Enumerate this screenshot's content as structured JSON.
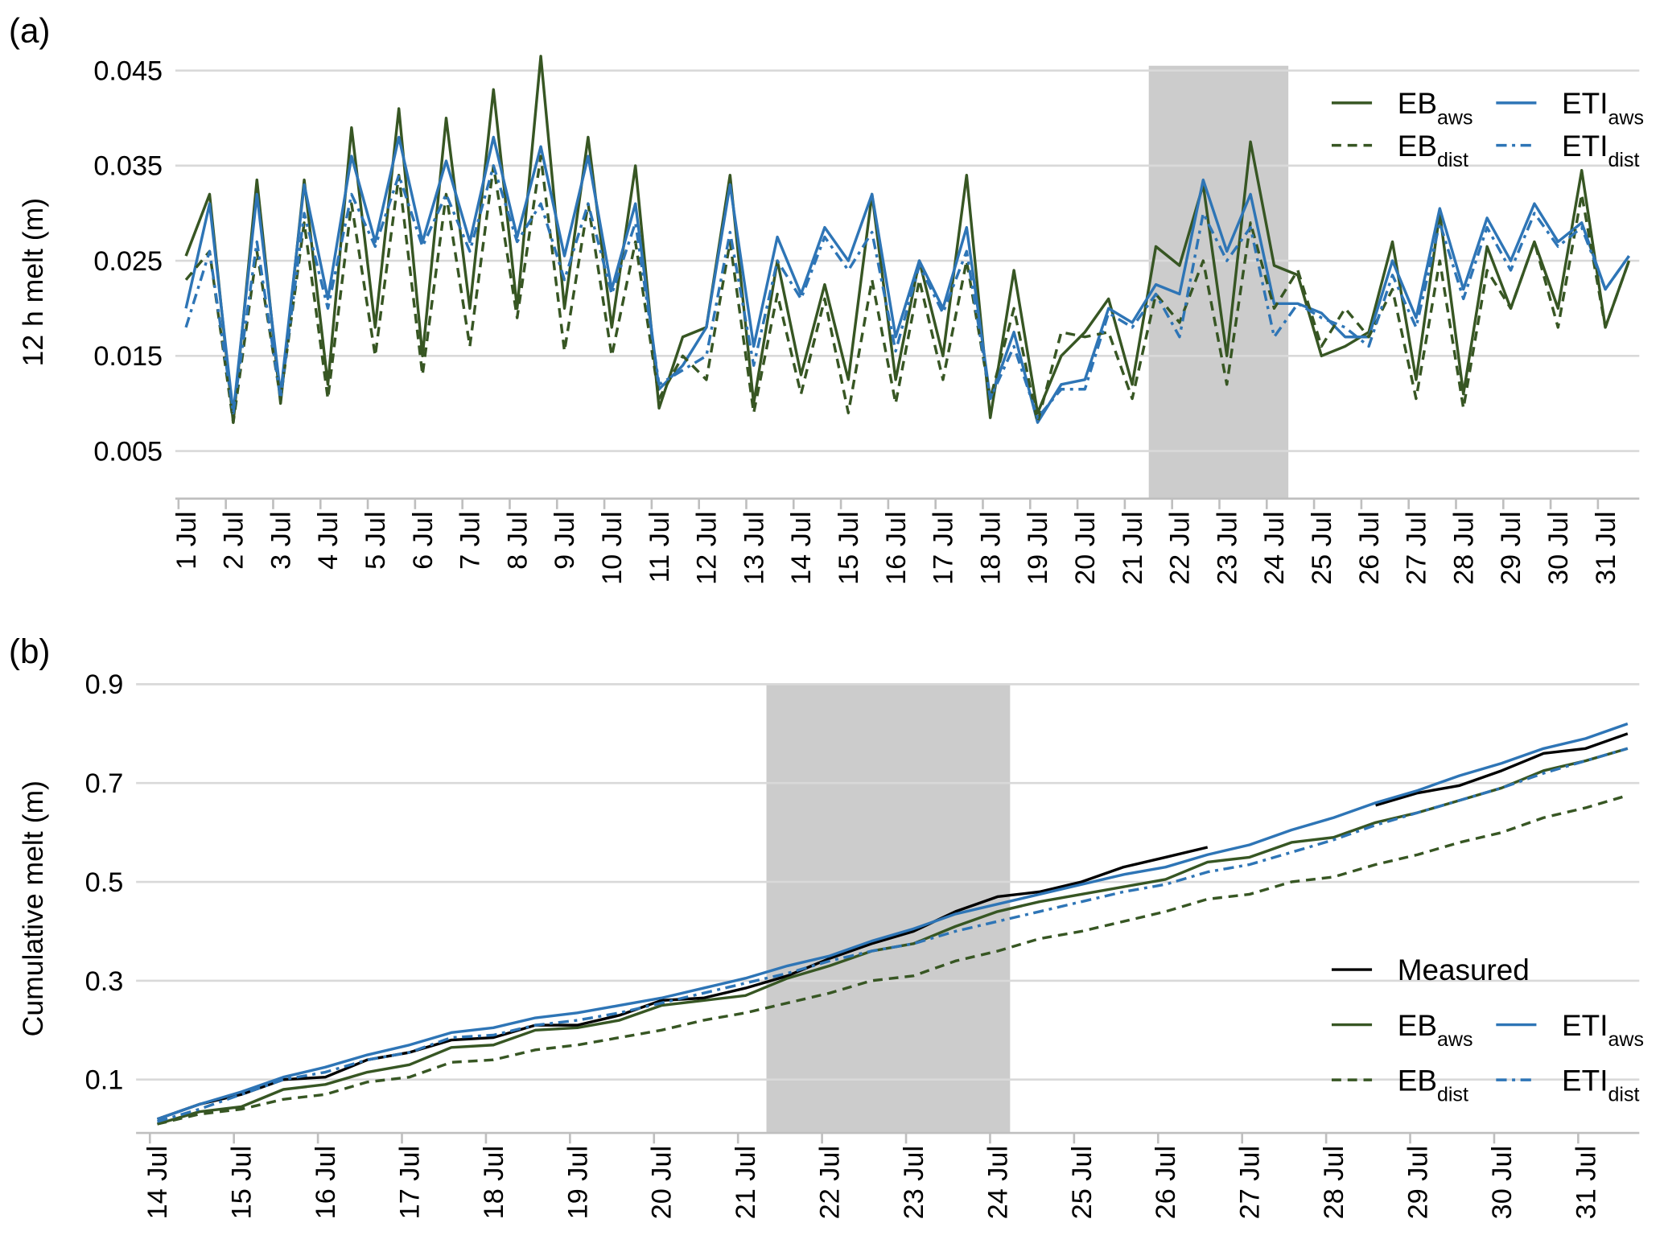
{
  "chart_data": [
    {
      "type": "line",
      "label": "(a)",
      "y_label": "12 h  melt (m)",
      "categories": [
        "1 Jul",
        null,
        "2 Jul",
        null,
        "3 Jul",
        null,
        "4 Jul",
        null,
        "5 Jul",
        null,
        "6 Jul",
        null,
        "7 Jul",
        null,
        "8 Jul",
        null,
        "9 Jul",
        null,
        "10 Jul",
        null,
        "11 Jul",
        null,
        "12 Jul",
        null,
        "13 Jul",
        null,
        "14 Jul",
        null,
        "15 Jul",
        null,
        "16 Jul",
        null,
        "17 Jul",
        null,
        "18 Jul",
        null,
        "19 Jul",
        null,
        "20 Jul",
        null,
        "21 Jul",
        null,
        "22 Jul",
        null,
        "23 Jul",
        null,
        "24 Jul",
        null,
        "25 Jul",
        null,
        "26 Jul",
        null,
        "27 Jul",
        null,
        "28 Jul",
        null,
        "29 Jul",
        null,
        "30 Jul",
        null,
        "31 Jul",
        null
      ],
      "ylim": [
        0,
        0.0455
      ],
      "yticks": [
        0.005,
        0.015,
        0.025,
        0.035,
        0.045
      ],
      "grid": true,
      "highlight_range": [
        40.7,
        46.6
      ],
      "highlight_color": "#cccccc",
      "legend_position": "upper right",
      "series": [
        {
          "name": "EB",
          "subscript": "aws",
          "color": "#375623",
          "dash": "solid",
          "values": [
            0.0255,
            0.032,
            0.008,
            0.0335,
            0.01,
            0.0335,
            0.012,
            0.039,
            0.018,
            0.041,
            0.015,
            0.04,
            0.02,
            0.043,
            0.02,
            0.0465,
            0.02,
            0.038,
            0.018,
            0.035,
            0.0095,
            0.017,
            0.018,
            0.034,
            0.01,
            0.025,
            0.013,
            0.0225,
            0.0125,
            0.032,
            0.0125,
            0.025,
            0.015,
            0.034,
            0.0085,
            0.024,
            0.009,
            0.015,
            0.0175,
            0.021,
            0.012,
            0.0265,
            0.0245,
            0.033,
            0.015,
            0.0375,
            0.0245,
            0.0235,
            0.015,
            0.016,
            0.0175,
            0.027,
            0.0125,
            0.03,
            0.011,
            0.0265,
            0.02,
            0.027,
            0.02,
            0.0345,
            0.018,
            0.025
          ]
        },
        {
          "name": "ETI",
          "subscript": "aws",
          "color": "#2e75b6",
          "dash": "solid",
          "values": [
            0.02,
            0.031,
            0.009,
            0.032,
            0.011,
            0.033,
            0.021,
            0.036,
            0.027,
            0.038,
            0.027,
            0.0355,
            0.027,
            0.038,
            0.0275,
            0.037,
            0.0255,
            0.036,
            0.022,
            0.031,
            0.0115,
            0.014,
            0.018,
            0.033,
            0.016,
            0.0275,
            0.0215,
            0.0285,
            0.025,
            0.032,
            0.017,
            0.025,
            0.02,
            0.0285,
            0.0105,
            0.0175,
            0.008,
            0.012,
            0.0125,
            0.02,
            0.0185,
            0.0225,
            0.0215,
            0.0335,
            0.026,
            0.032,
            0.0205,
            0.0205,
            0.0195,
            0.017,
            0.017,
            0.025,
            0.019,
            0.0305,
            0.022,
            0.0295,
            0.025,
            0.031,
            0.027,
            0.029,
            0.022,
            0.0255
          ]
        },
        {
          "name": "EB",
          "subscript": "dist",
          "color": "#375623",
          "dash": "dashed",
          "values": [
            0.023,
            0.026,
            0.008,
            0.026,
            0.0105,
            0.029,
            0.0105,
            0.031,
            0.015,
            0.034,
            0.013,
            0.032,
            0.016,
            0.035,
            0.019,
            0.036,
            0.0155,
            0.031,
            0.015,
            0.027,
            0.0105,
            0.015,
            0.0125,
            0.027,
            0.009,
            0.0215,
            0.011,
            0.021,
            0.009,
            0.023,
            0.01,
            0.023,
            0.0125,
            0.025,
            0.0105,
            0.02,
            0.008,
            0.0175,
            0.017,
            0.0175,
            0.0105,
            0.0215,
            0.0185,
            0.025,
            0.012,
            0.029,
            0.02,
            0.024,
            0.016,
            0.02,
            0.017,
            0.022,
            0.0105,
            0.025,
            0.0095,
            0.024,
            0.02,
            0.027,
            0.018,
            0.032,
            0.018,
            0.025
          ]
        },
        {
          "name": "ETI",
          "subscript": "dist",
          "color": "#2e75b6",
          "dash": "dashdot",
          "values": [
            0.018,
            0.026,
            0.009,
            0.027,
            0.0105,
            0.03,
            0.02,
            0.032,
            0.0265,
            0.034,
            0.0265,
            0.032,
            0.026,
            0.035,
            0.027,
            0.031,
            0.023,
            0.031,
            0.0215,
            0.029,
            0.012,
            0.0135,
            0.015,
            0.028,
            0.014,
            0.025,
            0.021,
            0.0275,
            0.024,
            0.028,
            0.0155,
            0.0245,
            0.0195,
            0.026,
            0.0105,
            0.016,
            0.0085,
            0.0115,
            0.0115,
            0.0195,
            0.018,
            0.0215,
            0.017,
            0.03,
            0.025,
            0.0285,
            0.017,
            0.0205,
            0.019,
            0.018,
            0.016,
            0.0235,
            0.018,
            0.029,
            0.021,
            0.0285,
            0.024,
            0.03,
            0.0265,
            0.0285,
            0.022,
            0.0255
          ]
        }
      ]
    },
    {
      "type": "line",
      "label": "(b)",
      "y_label": "Cumulative melt (m)",
      "categories": [
        "14 Jul",
        null,
        "15 Jul",
        null,
        "16 Jul",
        null,
        "17 Jul",
        null,
        "18 Jul",
        null,
        "19 Jul",
        null,
        "20 Jul",
        null,
        "21 Jul",
        null,
        "22 Jul",
        null,
        "23 Jul",
        null,
        "24 Jul",
        null,
        "25 Jul",
        null,
        "26 Jul",
        null,
        "27 Jul",
        null,
        "28 Jul",
        null,
        "29 Jul",
        null,
        "30 Jul",
        null,
        "31 Jul",
        null
      ],
      "ylim": [
        -0.008,
        0.9
      ],
      "yticks": [
        0.1,
        0.3,
        0.5,
        0.7,
        0.9
      ],
      "grid": true,
      "highlight_range": [
        14.5,
        20.3
      ],
      "highlight_color": "#cccccc",
      "legend_position": "lower right",
      "series": [
        {
          "name": "Measured",
          "color": "#000000",
          "dash": "solid",
          "values": [
            0.02,
            0.05,
            0.07,
            0.1,
            0.105,
            0.14,
            0.155,
            0.18,
            0.185,
            0.21,
            0.21,
            0.23,
            0.26,
            0.265,
            0.285,
            0.31,
            0.345,
            0.375,
            0.4,
            0.44,
            0.47,
            0.48,
            0.5,
            0.53,
            0.55,
            0.57,
            null,
            null,
            null,
            0.655,
            0.68,
            0.695,
            0.725,
            0.76,
            0.77,
            0.8
          ]
        },
        {
          "name": "EB",
          "subscript": "aws",
          "color": "#375623",
          "dash": "solid",
          "values": [
            0.01,
            0.035,
            0.045,
            0.08,
            0.09,
            0.115,
            0.13,
            0.165,
            0.17,
            0.2,
            0.205,
            0.22,
            0.25,
            0.26,
            0.27,
            0.305,
            0.33,
            0.36,
            0.375,
            0.41,
            0.44,
            0.46,
            0.475,
            0.49,
            0.505,
            0.54,
            0.55,
            0.58,
            0.59,
            0.62,
            0.64,
            0.665,
            0.69,
            0.725,
            0.745,
            0.77
          ]
        },
        {
          "name": "ETI",
          "subscript": "aws",
          "color": "#2e75b6",
          "dash": "solid",
          "values": [
            0.02,
            0.05,
            0.075,
            0.105,
            0.125,
            0.15,
            0.17,
            0.195,
            0.205,
            0.225,
            0.235,
            0.25,
            0.265,
            0.285,
            0.305,
            0.33,
            0.35,
            0.38,
            0.405,
            0.435,
            0.455,
            0.475,
            0.495,
            0.515,
            0.53,
            0.555,
            0.575,
            0.605,
            0.63,
            0.66,
            0.685,
            0.715,
            0.74,
            0.77,
            0.79,
            0.82
          ]
        },
        {
          "name": "EB",
          "subscript": "dist",
          "color": "#375623",
          "dash": "dashed",
          "values": [
            0.01,
            0.03,
            0.04,
            0.06,
            0.07,
            0.095,
            0.105,
            0.135,
            0.14,
            0.16,
            0.17,
            0.185,
            0.2,
            0.22,
            0.235,
            0.255,
            0.275,
            0.3,
            0.31,
            0.34,
            0.36,
            0.385,
            0.4,
            0.42,
            0.44,
            0.465,
            0.475,
            0.5,
            0.51,
            0.535,
            0.555,
            0.58,
            0.6,
            0.63,
            0.65,
            0.675
          ]
        },
        {
          "name": "ETI",
          "subscript": "dist",
          "color": "#2e75b6",
          "dash": "dashdot",
          "values": [
            0.015,
            0.04,
            0.07,
            0.1,
            0.115,
            0.14,
            0.155,
            0.185,
            0.19,
            0.21,
            0.22,
            0.235,
            0.255,
            0.275,
            0.295,
            0.315,
            0.34,
            0.36,
            0.375,
            0.4,
            0.42,
            0.44,
            0.46,
            0.48,
            0.495,
            0.52,
            0.535,
            0.56,
            0.585,
            0.615,
            0.64,
            0.665,
            0.69,
            0.72,
            0.745,
            0.77
          ]
        }
      ]
    }
  ]
}
